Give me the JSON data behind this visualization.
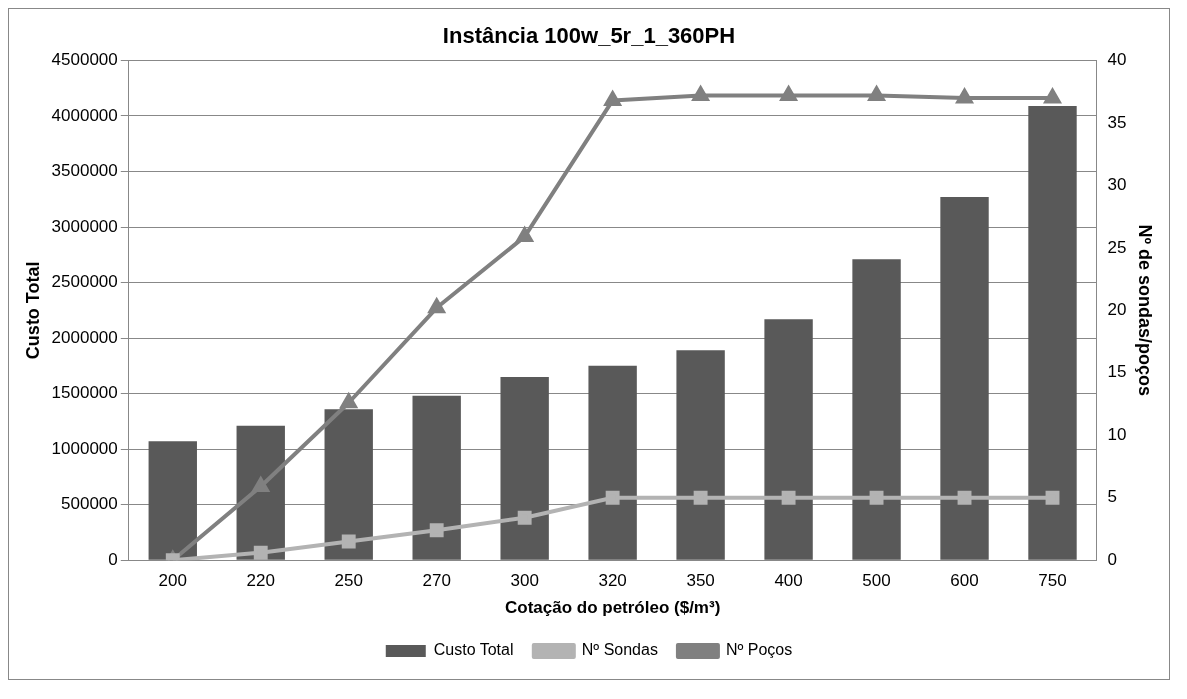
{
  "chart_data": {
    "type": "bar",
    "title": "Instância 100w_5r_1_360PH",
    "xlabel": "Cotação do petróleo ($/m³)",
    "ylabel": "Custo Total",
    "y2label": "Nº de sondas/poços",
    "categories": [
      "200",
      "220",
      "250",
      "270",
      "300",
      "320",
      "350",
      "400",
      "500",
      "600",
      "750"
    ],
    "series": [
      {
        "name": "Custo Total",
        "color": "#595959",
        "values": [
          1070000,
          1210000,
          1360000,
          1480000,
          1650000,
          1750000,
          1890000,
          2170000,
          2710000,
          3270000,
          4090000
        ]
      },
      {
        "name": "Nº Sondas",
        "type": "line",
        "axis": "y2",
        "color": "#b3b3b3",
        "marker": "square",
        "values": [
          0,
          0.6,
          1.5,
          2.4,
          3.4,
          5,
          5,
          5,
          5,
          5,
          5
        ]
      },
      {
        "name": "Nº Poços",
        "type": "line",
        "axis": "y2",
        "color": "#808080",
        "marker": "triangle",
        "values": [
          0,
          5.9,
          12.6,
          20.2,
          25.9,
          36.8,
          37.2,
          37.2,
          37.2,
          37,
          37
        ]
      }
    ],
    "ylim": [
      0,
      4500000
    ],
    "yticks": [
      0,
      500000,
      1000000,
      1500000,
      2000000,
      2500000,
      3000000,
      3500000,
      4000000,
      4500000
    ],
    "y2lim": [
      0,
      40
    ],
    "y2ticks": [
      0,
      5,
      10,
      15,
      20,
      25,
      30,
      35,
      40
    ],
    "grid": "y",
    "legend": "bottom"
  }
}
